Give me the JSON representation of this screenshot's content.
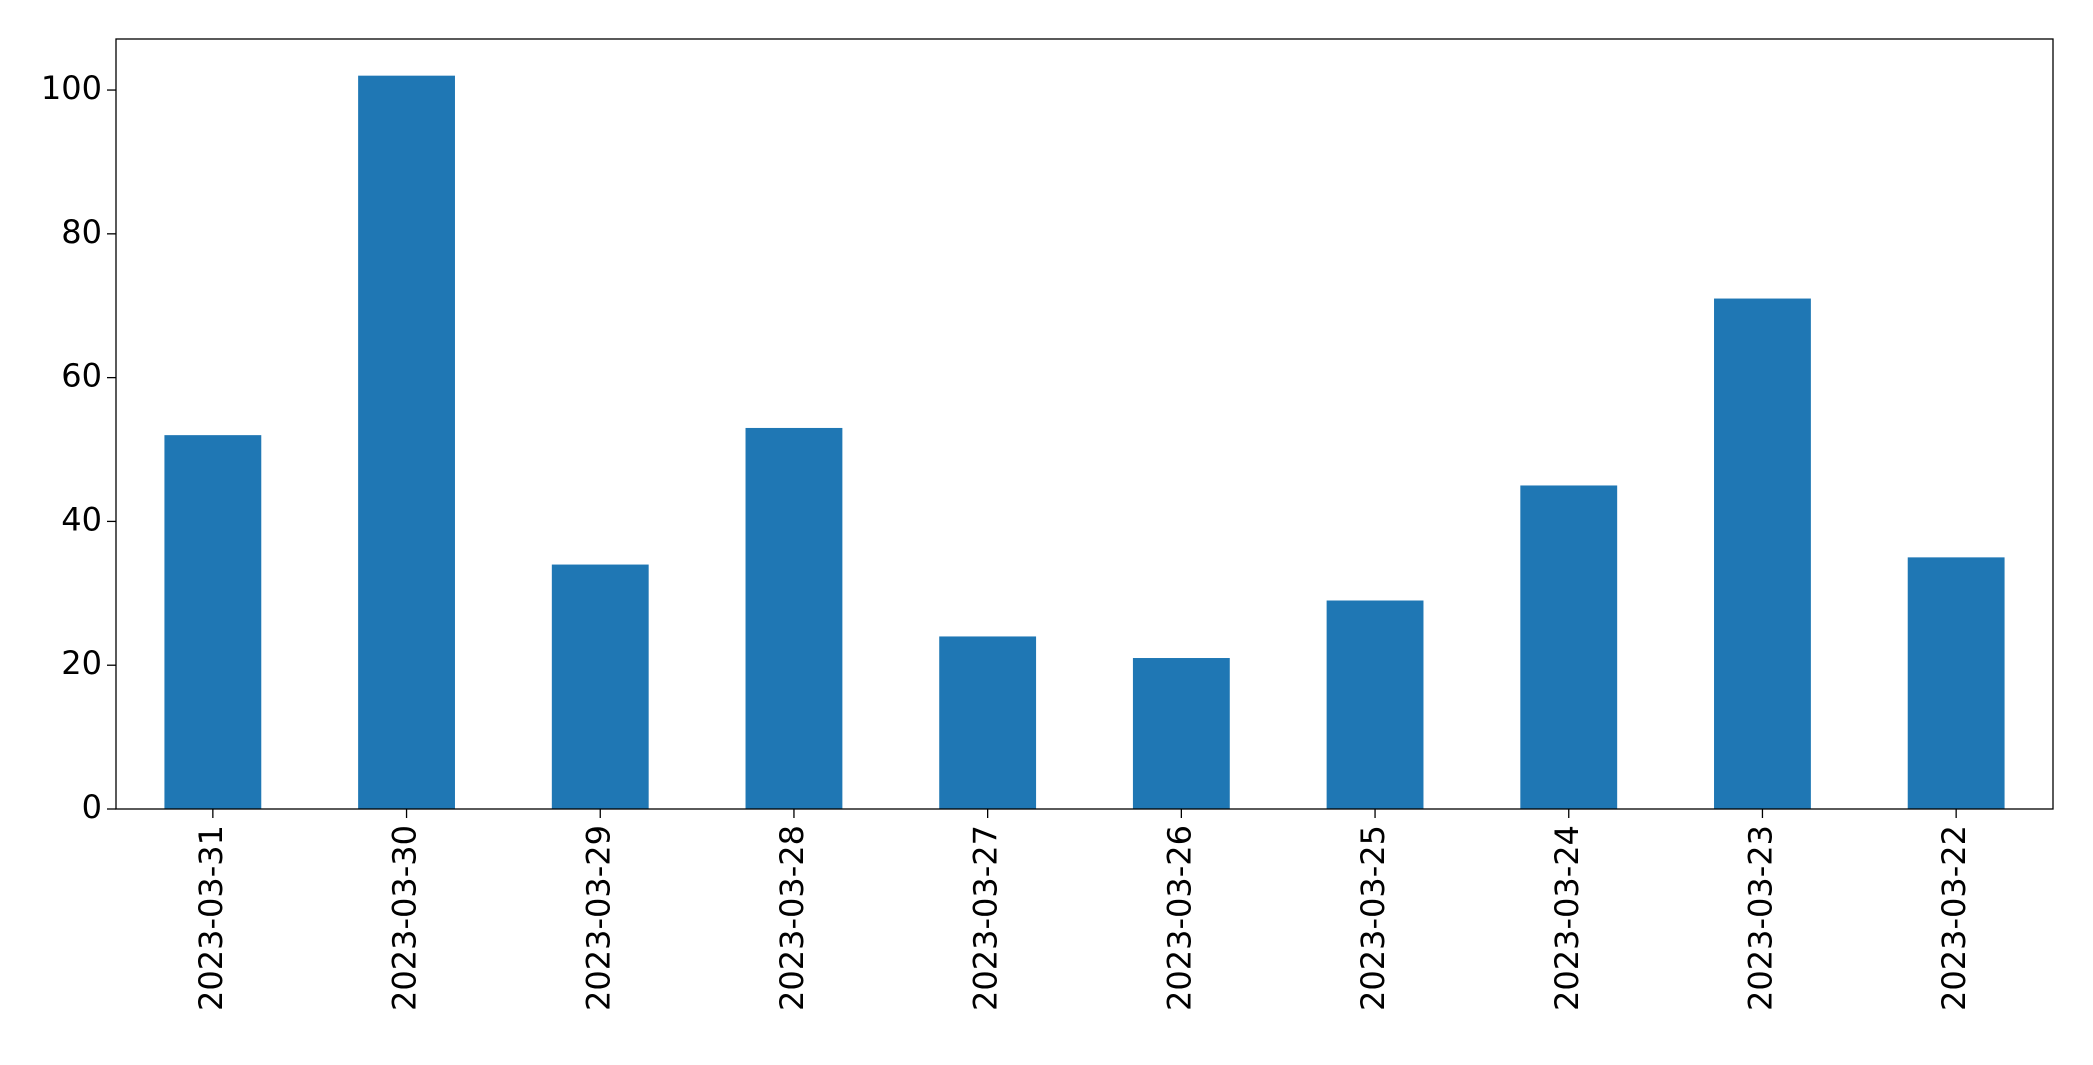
{
  "chart_data": {
    "type": "bar",
    "categories": [
      "2023-03-31",
      "2023-03-30",
      "2023-03-29",
      "2023-03-28",
      "2023-03-27",
      "2023-03-26",
      "2023-03-25",
      "2023-03-24",
      "2023-03-23",
      "2023-03-22"
    ],
    "values": [
      52,
      102,
      34,
      53,
      24,
      21,
      29,
      45,
      71,
      35
    ],
    "color": "#1f77b4",
    "ylim": [
      0,
      107.1
    ],
    "yticks": [
      0,
      20,
      40,
      60,
      80,
      100
    ],
    "grid": false
  }
}
